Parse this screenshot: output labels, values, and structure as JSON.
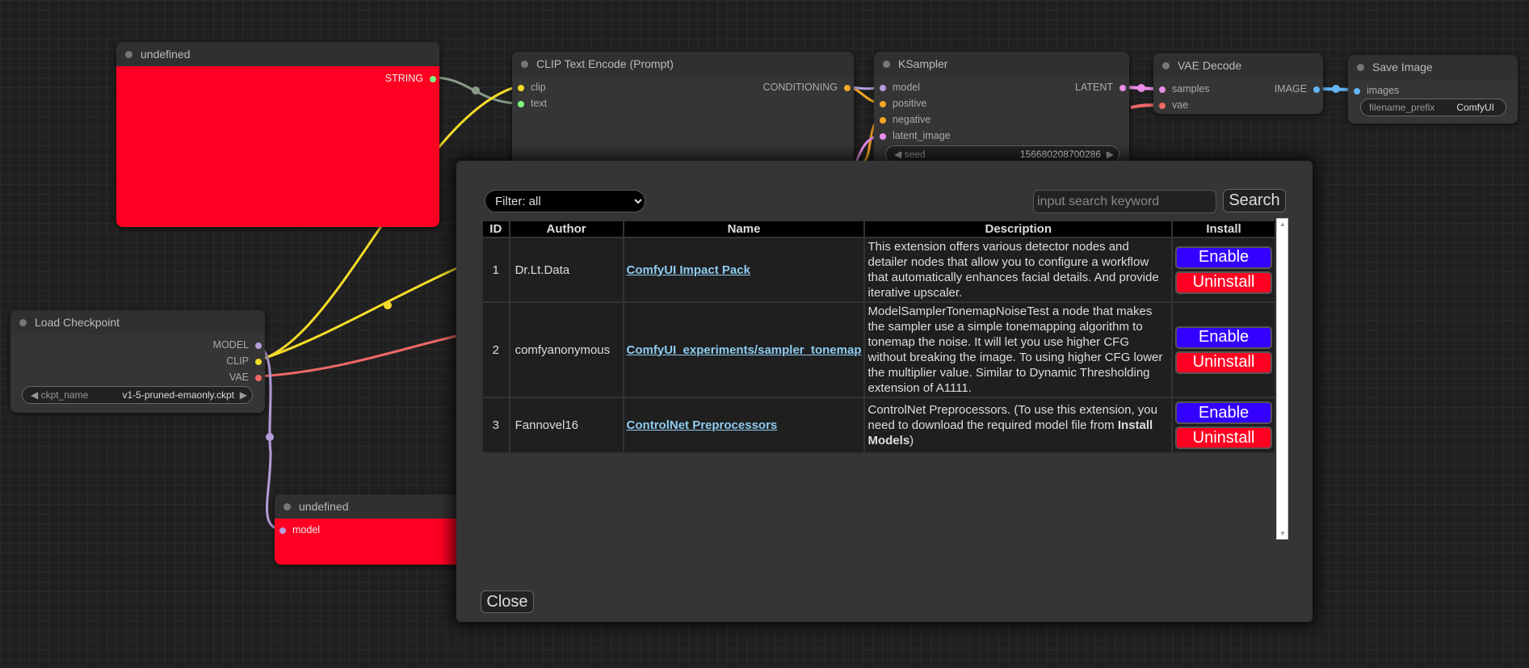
{
  "nodes": {
    "undef_top": {
      "title": "undefined",
      "output": "STRING"
    },
    "clip": {
      "title": "CLIP Text Encode (Prompt)",
      "inputs": [
        "clip",
        "text"
      ],
      "output": "CONDITIONING"
    },
    "ksampler": {
      "title": "KSampler",
      "inputs": [
        "model",
        "positive",
        "negative",
        "latent_image"
      ],
      "output": "LATENT",
      "seed_label": "seed",
      "seed_value": "156680208700286"
    },
    "vae": {
      "title": "VAE Decode",
      "inputs": [
        "samples",
        "vae"
      ],
      "output": "IMAGE"
    },
    "save": {
      "title": "Save Image",
      "input": "images",
      "prefix_label": "filename_prefix",
      "prefix_value": "ComfyUI"
    },
    "checkpoint": {
      "title": "Load Checkpoint",
      "outputs": [
        "MODEL",
        "CLIP",
        "VAE"
      ],
      "ckpt_label": "ckpt_name",
      "ckpt_value": "v1-5-pruned-emaonly.ckpt"
    },
    "undef_bottom": {
      "title": "undefined",
      "input": "model"
    }
  },
  "dialog": {
    "filter": "Filter: all",
    "search_placeholder": "input search keyword",
    "search_label": "Search",
    "close_label": "Close",
    "columns": [
      "ID",
      "Author",
      "Name",
      "Description",
      "Install"
    ],
    "rows": [
      {
        "id": "1",
        "author": "Dr.Lt.Data",
        "name": "ComfyUI Impact Pack",
        "description": "This extension offers various detector nodes and detailer nodes that allow you to configure a workflow that automatically enhances facial details. And provide iterative upscaler."
      },
      {
        "id": "2",
        "author": "comfyanonymous",
        "name": "ComfyUI_experiments/sampler_tonemap",
        "description": "ModelSamplerTonemapNoiseTest a node that makes the sampler use a simple tonemapping algorithm to tonemap the noise. It will let you use higher CFG without breaking the image. To using higher CFG lower the multiplier value. Similar to Dynamic Thresholding extension of A1111."
      },
      {
        "id": "3",
        "author": "Fannovel16",
        "name": "ControlNet Preprocessors",
        "description": "ControlNet Preprocessors. (To use this extension, you need to download the required model file from ",
        "description_bold": "Install Models",
        "description_end": ")"
      }
    ],
    "enable_label": "Enable",
    "uninstall_label": "Uninstall"
  },
  "colors": {
    "enable": "#3300ff",
    "uninstall": "#ff0022",
    "node_red": "#ff0022",
    "link": "#8ecbf0"
  }
}
